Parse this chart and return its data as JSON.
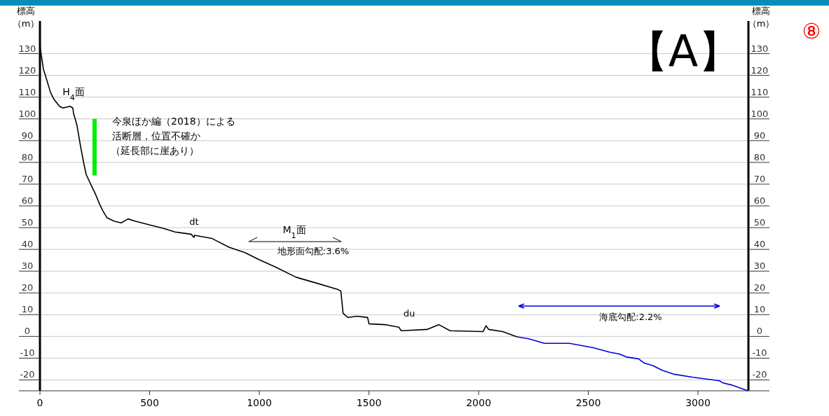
{
  "chart_data": {
    "type": "line",
    "title": "【A】",
    "ylabel": "標高（m）",
    "y2label": "標高（m）",
    "xlim": [
      0,
      3230
    ],
    "xticks": [
      0,
      500,
      1000,
      1500,
      2000,
      2500,
      3000
    ],
    "ylim": [
      -25,
      145
    ],
    "yticks": [
      -20,
      -10,
      0,
      10,
      20,
      30,
      40,
      50,
      60,
      70,
      80,
      90,
      100,
      110,
      120,
      130
    ],
    "y2lim": [
      -25,
      145
    ],
    "y2ticks": [
      -20,
      -10,
      0,
      10,
      20,
      30,
      40,
      50,
      60,
      70,
      80,
      90,
      100,
      110,
      120,
      130
    ],
    "grid": "y",
    "line_style": "solid",
    "series": [
      {
        "color": "#000000",
        "x": [
          0,
          3,
          16,
          32,
          48,
          64,
          89,
          105,
          137,
          150,
          153,
          169,
          185,
          201,
          211,
          233,
          255,
          271,
          287,
          306,
          338,
          370,
          402,
          434,
          498,
          562,
          616,
          689,
          702,
          705,
          785,
          862,
          935,
          999,
          1072,
          1168,
          1254,
          1360,
          1372,
          1382,
          1404,
          1446,
          1494,
          1500,
          1574,
          1637,
          1647,
          1765,
          1819,
          1870,
          2020,
          2034,
          2046,
          2110,
          2175
        ],
        "values": [
          134,
          131.4,
          122.8,
          117.6,
          112.2,
          109,
          105.8,
          105,
          105.8,
          105,
          102.6,
          97,
          87.5,
          79,
          74.4,
          69.6,
          65,
          61,
          57.7,
          54.5,
          53,
          52.2,
          54,
          53,
          51.3,
          49.7,
          48,
          47,
          45.5,
          46.5,
          45,
          41,
          38.5,
          35.3,
          32,
          27.2,
          24.7,
          21.5,
          20.8,
          10.6,
          8.7,
          9.3,
          8.7,
          5.8,
          5.4,
          4.2,
          2.6,
          3.2,
          5.4,
          2.6,
          2.2,
          4.9,
          3.2,
          2.2,
          -0.2
        ]
      },
      {
        "color": "#0000dd",
        "x": [
          2175,
          2229,
          2300,
          2414,
          2523,
          2599,
          2642,
          2675,
          2729,
          2756,
          2794,
          2837,
          2892,
          2978,
          3098,
          3114,
          3152,
          3228
        ],
        "values": [
          -0.2,
          -1.1,
          -3.2,
          -3.2,
          -5.2,
          -7.3,
          -8.1,
          -9.5,
          -10.3,
          -12.3,
          -13.4,
          -15.6,
          -17.4,
          -18.8,
          -20.4,
          -21.4,
          -22.3,
          -25
        ]
      },
      {
        "color": "#00ee00",
        "x": [
          249,
          249
        ],
        "values": [
          100,
          74
        ]
      }
    ],
    "annotations": [
      "H$_{4}$面",
      "今泉ほか編（2018）による",
      "活断層，位置不確か",
      "（延長部に崖あり）",
      "dt",
      "M$_{1}$面",
      "地形面勾配:3.6%",
      "du",
      "海底勾配:2.2%",
      "⑧"
    ]
  }
}
